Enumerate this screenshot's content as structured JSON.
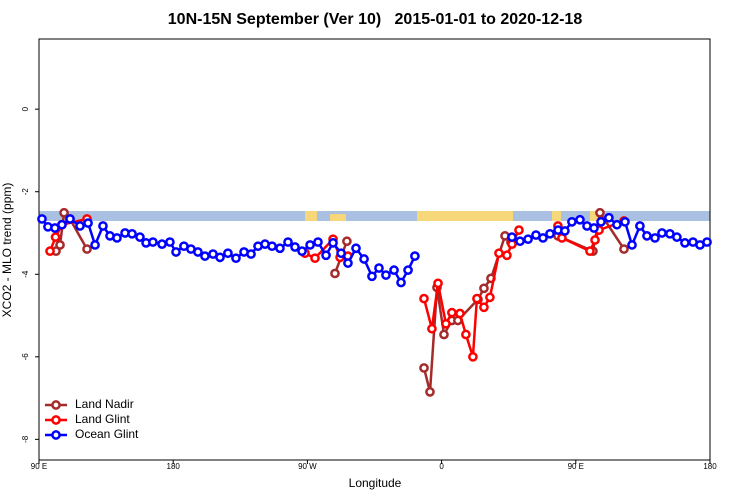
{
  "chart_data": {
    "type": "line",
    "title": "10N-15N September (Ver 10)   2015-01-01 to 2020-12-18",
    "x_label": "Longitude",
    "y_label": "XCO2 - MLO trend (ppm)",
    "xlim": [
      90,
      540
    ],
    "ylim": [
      -8.5,
      1.7
    ],
    "xticks": [
      {
        "value": 90,
        "label": "90 E"
      },
      {
        "value": 180,
        "label": "180"
      },
      {
        "value": 270,
        "label": "90 W"
      },
      {
        "value": 360,
        "label": "0"
      },
      {
        "value": 450,
        "label": "90 E"
      },
      {
        "value": 540,
        "label": "180"
      }
    ],
    "yticks": [
      0,
      -2,
      -4,
      -6,
      -8
    ],
    "legend": "bottom-left",
    "series": [
      {
        "name": "Land Nadir",
        "color": "#a52a2a",
        "x": [
          101.4,
          104.1,
          106.8,
          110.8,
          122.2,
          null,
          288.5,
          296.5,
          null,
          348.2,
          352.2,
          356.9,
          361.6,
          366.9,
          370.9,
          384.4,
          388.4,
          393.1,
          402.5,
          406.5,
          null,
          438.0,
          461.5,
          466.2,
          482.3
        ],
        "values": [
          -3.44,
          -3.29,
          -2.51,
          -2.66,
          -3.39,
          null,
          -3.98,
          -3.2,
          null,
          -6.27,
          -6.85,
          -4.32,
          -5.46,
          -5.12,
          -5.12,
          -4.61,
          -4.34,
          -4.1,
          -3.07,
          -3.22,
          null,
          -3.07,
          -3.44,
          -2.51,
          -3.39
        ]
      },
      {
        "name": "Land Glint",
        "color": "#ff0000",
        "x": [
          97.4,
          101.1,
          105.4,
          122.2,
          null,
          268.4,
          275.1,
          287.2,
          291.9,
          297.2,
          null,
          348.2,
          353.5,
          357.6,
          362.9,
          366.9,
          372.3,
          376.3,
          381.0,
          383.7,
          388.4,
          392.4,
          398.5,
          403.8,
          407.2,
          411.9,
          null,
          438.0,
          440.7,
          459.5,
          462.9,
          465.6,
          482.3
        ],
        "values": [
          -3.44,
          -3.1,
          -2.8,
          -2.66,
          null,
          -3.49,
          -3.61,
          -3.15,
          -3.59,
          -3.56,
          null,
          -4.59,
          -5.32,
          -4.22,
          -5.2,
          -4.93,
          -4.95,
          -5.46,
          -6.0,
          -4.59,
          -4.8,
          -4.56,
          -3.49,
          -3.54,
          -3.27,
          -2.93,
          null,
          -2.83,
          -3.12,
          -3.44,
          -3.17,
          -2.93,
          -2.71
        ]
      },
      {
        "name": "Ocean Glint",
        "color": "#0000ff",
        "x": [
          92.0,
          96.0,
          100.7,
          105.4,
          110.8,
          117.5,
          122.9,
          127.6,
          132.9,
          137.6,
          142.3,
          147.7,
          152.4,
          157.7,
          161.8,
          166.4,
          172.5,
          177.8,
          181.9,
          187.2,
          191.9,
          196.6,
          201.3,
          206.7,
          211.4,
          216.7,
          222.1,
          227.5,
          232.2,
          236.9,
          241.6,
          246.3,
          251.6,
          257.0,
          261.7,
          266.4,
          271.8,
          277.1,
          282.5,
          287.2,
          292.6,
          297.2,
          302.6,
          308.0,
          313.3,
          318.0,
          322.7,
          328.1,
          332.8,
          337.5,
          342.1,
          null,
          407.2,
          412.6,
          418.0,
          423.3,
          428.0,
          432.7,
          438.1,
          442.7,
          447.4,
          452.8,
          457.5,
          462.2,
          466.9,
          472.2,
          477.6,
          483.0,
          487.7,
          493.0,
          497.7,
          503.1,
          507.8,
          513.1,
          517.8,
          523.2,
          528.6,
          533.3,
          538.0
        ],
        "values": [
          -2.66,
          -2.85,
          -2.88,
          -2.8,
          -2.66,
          -2.83,
          -2.76,
          -3.29,
          -2.83,
          -3.07,
          -3.12,
          -3.0,
          -3.02,
          -3.1,
          -3.24,
          -3.22,
          -3.27,
          -3.22,
          -3.46,
          -3.32,
          -3.39,
          -3.46,
          -3.56,
          -3.51,
          -3.59,
          -3.49,
          -3.61,
          -3.46,
          -3.51,
          -3.32,
          -3.27,
          -3.32,
          -3.37,
          -3.22,
          -3.34,
          -3.44,
          -3.29,
          -3.22,
          -3.54,
          -3.24,
          -3.49,
          -3.73,
          -3.37,
          -3.63,
          -4.05,
          -3.85,
          -4.02,
          -3.9,
          -4.2,
          -3.9,
          -3.56,
          null,
          -3.1,
          -3.2,
          -3.15,
          -3.05,
          -3.12,
          -3.02,
          -2.93,
          -2.95,
          -2.73,
          -2.68,
          -2.83,
          -2.88,
          -2.73,
          -2.63,
          -2.8,
          -2.73,
          -3.29,
          -2.83,
          -3.07,
          -3.12,
          -3.0,
          -3.02,
          -3.1,
          -3.24,
          -3.22,
          -3.29,
          -3.22
        ]
      }
    ]
  }
}
